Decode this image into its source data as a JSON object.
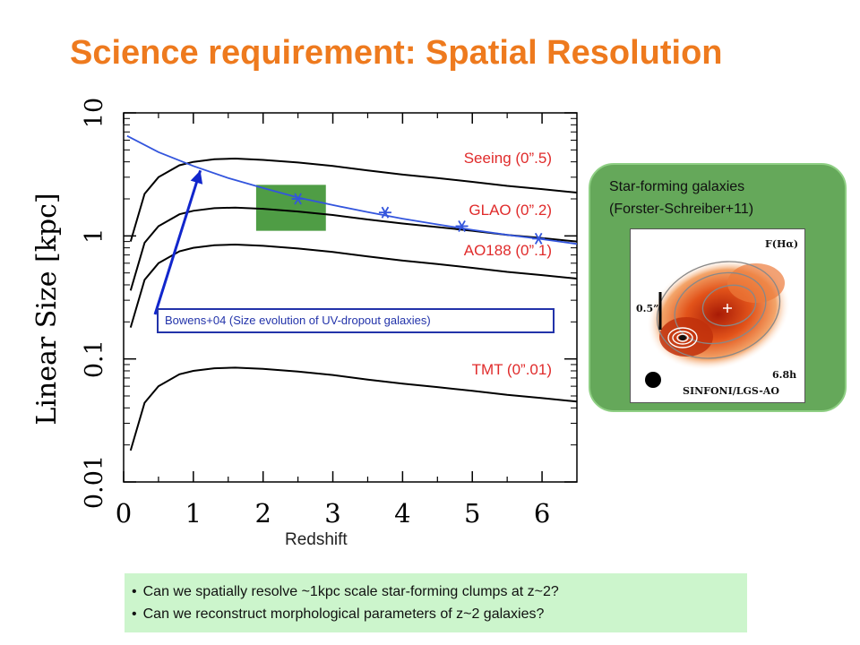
{
  "slide": {
    "title": "Science requirement: Spatial Resolution"
  },
  "chart_data": {
    "type": "line",
    "xlabel": "Redshift",
    "ylabel": "Linear Size [kpc]",
    "xlim": [
      0,
      6.5
    ],
    "ylim": [
      0.01,
      10
    ],
    "y_scale": "log",
    "x_ticks": [
      "0",
      "1",
      "2",
      "3",
      "4",
      "5",
      "6"
    ],
    "y_ticks": [
      "0.01",
      "0.1",
      "1",
      "10"
    ],
    "series": [
      {
        "name": "Seeing (0”.5)",
        "color": "#000000",
        "x": [
          0.1,
          0.3,
          0.5,
          0.8,
          1.0,
          1.3,
          1.6,
          2.0,
          2.5,
          3.0,
          3.5,
          4.0,
          4.5,
          5.0,
          5.5,
          6.0,
          6.5
        ],
        "y": [
          0.9,
          2.2,
          3.0,
          3.75,
          4.0,
          4.2,
          4.25,
          4.15,
          3.95,
          3.7,
          3.4,
          3.15,
          2.95,
          2.75,
          2.55,
          2.4,
          2.25
        ]
      },
      {
        "name": "GLAO (0”.2)",
        "color": "#000000",
        "x": [
          0.1,
          0.3,
          0.5,
          0.8,
          1.0,
          1.3,
          1.6,
          2.0,
          2.5,
          3.0,
          3.5,
          4.0,
          4.5,
          5.0,
          5.5,
          6.0,
          6.5
        ],
        "y": [
          0.36,
          0.88,
          1.2,
          1.5,
          1.6,
          1.68,
          1.7,
          1.66,
          1.58,
          1.48,
          1.36,
          1.26,
          1.18,
          1.1,
          1.02,
          0.96,
          0.9
        ]
      },
      {
        "name": "AO188 (0”.1)",
        "color": "#000000",
        "x": [
          0.1,
          0.3,
          0.5,
          0.8,
          1.0,
          1.3,
          1.6,
          2.0,
          2.5,
          3.0,
          3.5,
          4.0,
          4.5,
          5.0,
          5.5,
          6.0,
          6.5
        ],
        "y": [
          0.18,
          0.44,
          0.6,
          0.75,
          0.8,
          0.84,
          0.85,
          0.83,
          0.79,
          0.74,
          0.68,
          0.63,
          0.59,
          0.55,
          0.51,
          0.48,
          0.45
        ]
      },
      {
        "name": "TMT (0”.01)",
        "color": "#000000",
        "x": [
          0.1,
          0.3,
          0.5,
          0.8,
          1.0,
          1.3,
          1.6,
          2.0,
          2.5,
          3.0,
          3.5,
          4.0,
          4.5,
          5.0,
          5.5,
          6.0,
          6.5
        ],
        "y": [
          0.018,
          0.044,
          0.06,
          0.075,
          0.08,
          0.084,
          0.085,
          0.083,
          0.079,
          0.074,
          0.068,
          0.063,
          0.059,
          0.055,
          0.051,
          0.048,
          0.045
        ]
      },
      {
        "name": "Bowens+04 (Size evolution of UV-dropout galaxies)",
        "color": "#3355dd",
        "x": [
          0.05,
          0.5,
          1.0,
          1.5,
          2.0,
          2.5,
          3.0,
          3.5,
          4.0,
          4.5,
          5.0,
          5.5,
          6.0,
          6.5
        ],
        "y": [
          6.5,
          4.8,
          3.7,
          2.95,
          2.45,
          2.05,
          1.78,
          1.56,
          1.38,
          1.24,
          1.12,
          1.02,
          0.94,
          0.86
        ]
      }
    ],
    "points": {
      "color": "#3355dd",
      "x": [
        2.5,
        3.75,
        4.85,
        5.95
      ],
      "y": [
        2.0,
        1.55,
        1.2,
        0.95
      ]
    },
    "highlight_region": {
      "x": [
        1.9,
        2.9
      ],
      "y": [
        1.1,
        2.6
      ],
      "color": "#4f9d45"
    },
    "arrow": {
      "from": [
        0.45,
        0.23
      ],
      "to": [
        1.1,
        3.4
      ],
      "color": "#1126cc"
    }
  },
  "annotations": {
    "bowens_label": "Bowens+04 (Size evolution of UV-dropout galaxies)"
  },
  "side_panel": {
    "title_line1": "Star-forming galaxies",
    "title_line2": "(Forster-Schreiber+11)",
    "image_label_top": "F(Hα)",
    "image_scale": "0.5”",
    "image_time": "6.8h",
    "image_caption": "SINFONI/LGS-AO"
  },
  "bullets": [
    "Can we spatially resolve ~1kpc scale star-forming clumps at z~2?",
    "Can we reconstruct morphological parameters of z~2 galaxies?"
  ]
}
